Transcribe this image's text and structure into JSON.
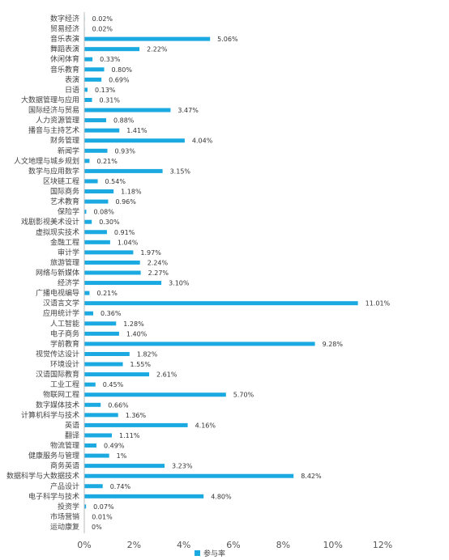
{
  "chart_data": {
    "type": "bar",
    "orientation": "horizontal",
    "categories": [
      "数字经济",
      "贸易经济",
      "音乐表演",
      "舞蹈表演",
      "休闲体育",
      "音乐教育",
      "表演",
      "日语",
      "大数据管理与应用",
      "国际经济与贸易",
      "人力资源管理",
      "播音与主持艺术",
      "财务管理",
      "新闻学",
      "人文地理与城乡规划",
      "数学与应用数学",
      "区块链工程",
      "国际商务",
      "艺术教育",
      "保险学",
      "戏剧影视美术设计",
      "虚拟现实技术",
      "金融工程",
      "审计学",
      "旅游管理",
      "网络与新媒体",
      "经济学",
      "广播电视编导",
      "汉语言文学",
      "应用统计学",
      "人工智能",
      "电子商务",
      "学前教育",
      "视觉传达设计",
      "环境设计",
      "汉语国际教育",
      "工业工程",
      "物联网工程",
      "数字媒体技术",
      "计算机科学与技术",
      "英语",
      "翻译",
      "物流管理",
      "健康服务与管理",
      "商务英语",
      "数据科学与大数据技术",
      "产品设计",
      "电子科学与技术",
      "投资学",
      "市场营销",
      "运动康复"
    ],
    "series": [
      {
        "name": "参与率",
        "values": [
          0.02,
          0.02,
          5.06,
          2.22,
          0.33,
          0.8,
          0.69,
          0.13,
          0.31,
          3.47,
          0.88,
          1.41,
          4.04,
          0.93,
          0.21,
          3.15,
          0.54,
          1.18,
          0.96,
          0.08,
          0.3,
          0.91,
          1.04,
          1.97,
          2.24,
          2.27,
          3.1,
          0.21,
          11.01,
          0.36,
          1.28,
          1.4,
          9.28,
          1.82,
          1.55,
          2.61,
          0.45,
          5.7,
          0.66,
          1.36,
          4.16,
          1.11,
          0.49,
          1,
          3.23,
          8.42,
          0.74,
          4.8,
          0.07,
          0.01,
          0
        ],
        "labels": [
          "0.02%",
          "0.02%",
          "5.06%",
          "2.22%",
          "0.33%",
          "0.80%",
          "0.69%",
          "0.13%",
          "0.31%",
          "3.47%",
          "0.88%",
          "1.41%",
          "4.04%",
          "0.93%",
          "0.21%",
          "3.15%",
          "0.54%",
          "1.18%",
          "0.96%",
          "0.08%",
          "0.30%",
          "0.91%",
          "1.04%",
          "1.97%",
          "2.24%",
          "2.27%",
          "3.10%",
          "0.21%",
          "11.01%",
          "0.36%",
          "1.28%",
          "1.40%",
          "9.28%",
          "1.82%",
          "1.55%",
          "2.61%",
          "0.45%",
          "5.70%",
          "0.66%",
          "1.36%",
          "4.16%",
          "1.11%",
          "0.49%",
          "1%",
          "3.23%",
          "8.42%",
          "0.74%",
          "4.80%",
          "0.07%",
          "0.01%",
          "0%"
        ]
      }
    ],
    "xlim": [
      0,
      12
    ],
    "xticks": [
      "0%",
      "2%",
      "4%",
      "6%",
      "8%",
      "10%",
      "12%"
    ],
    "grid": false,
    "legend_position": "bottom",
    "bar_color": "#1aa9e0"
  }
}
